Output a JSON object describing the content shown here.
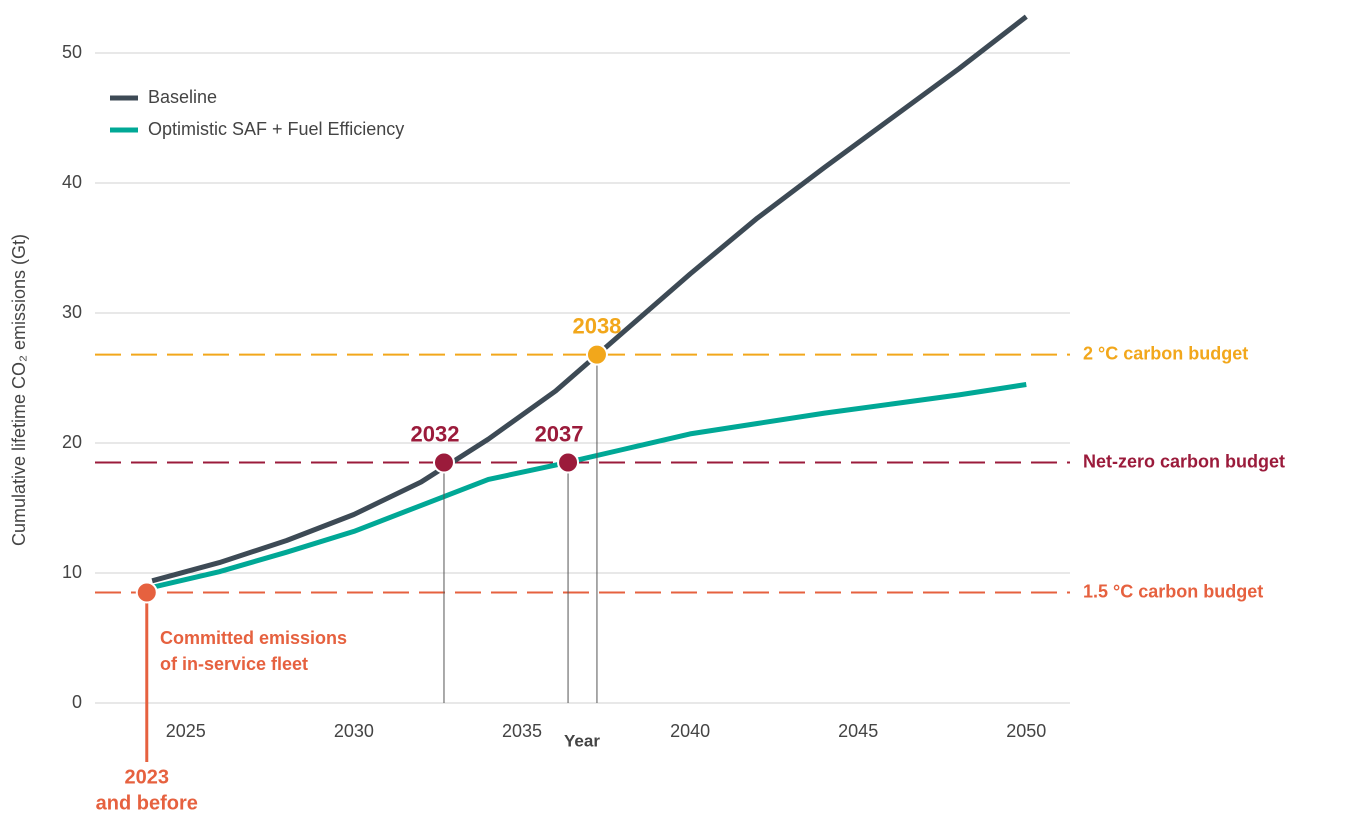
{
  "chart_data": {
    "type": "line",
    "x_label": "Year",
    "y_label": "Cumulative lifetime CO₂ emissions (Gt)",
    "xlim": [
      2022.3,
      2051.3
    ],
    "ylim": [
      0,
      53
    ],
    "xticks": [
      2025,
      2030,
      2035,
      2040,
      2045,
      2050
    ],
    "yticks": [
      0,
      10,
      20,
      30,
      40,
      50
    ],
    "grid": true,
    "legend": "upper left",
    "series": [
      {
        "name": "Baseline",
        "color": "#3d4a55",
        "x": [
          2024,
          2026,
          2028,
          2030,
          2032,
          2034,
          2036,
          2038,
          2040,
          2042,
          2044,
          2046,
          2048,
          2050
        ],
        "values": [
          9.4,
          10.8,
          12.5,
          14.5,
          17.0,
          20.3,
          24.0,
          28.5,
          33.0,
          37.3,
          41.2,
          45.0,
          48.8,
          52.8
        ]
      },
      {
        "name": "Optimistic SAF + Fuel Efficiency",
        "color": "#00a896",
        "x": [
          2024,
          2026,
          2028,
          2030,
          2032,
          2034,
          2036,
          2038,
          2040,
          2042,
          2044,
          2046,
          2048,
          2050
        ],
        "values": [
          8.9,
          10.1,
          11.6,
          13.2,
          15.2,
          17.2,
          18.3,
          19.5,
          20.7,
          21.5,
          22.3,
          23.0,
          23.7,
          24.5
        ]
      }
    ],
    "reference_lines": [
      {
        "label": "2 °C carbon budget",
        "value": 26.8,
        "color": "#f2a71b"
      },
      {
        "label": "Net-zero carbon budget",
        "value": 18.5,
        "color": "#9b1b3b"
      },
      {
        "label": "1.5 °C  carbon budget",
        "value": 8.5,
        "color": "#e6613f"
      }
    ],
    "markers": [
      {
        "label": [
          "2023",
          "and before"
        ],
        "x": 2023.84,
        "y": 8.5,
        "color": "#e6613f"
      },
      {
        "label": [
          "2032"
        ],
        "x": 2032.68,
        "y": 18.5,
        "color": "#9b1b3b"
      },
      {
        "label": [
          "2037"
        ],
        "x": 2036.37,
        "y": 18.5,
        "color": "#9b1b3b"
      },
      {
        "label": [
          "2038"
        ],
        "x": 2037.23,
        "y": 26.8,
        "color": "#f2a71b"
      }
    ],
    "annotation": {
      "lines": [
        "Committed emissions",
        "of in-service fleet"
      ],
      "color": "#e6613f"
    }
  }
}
